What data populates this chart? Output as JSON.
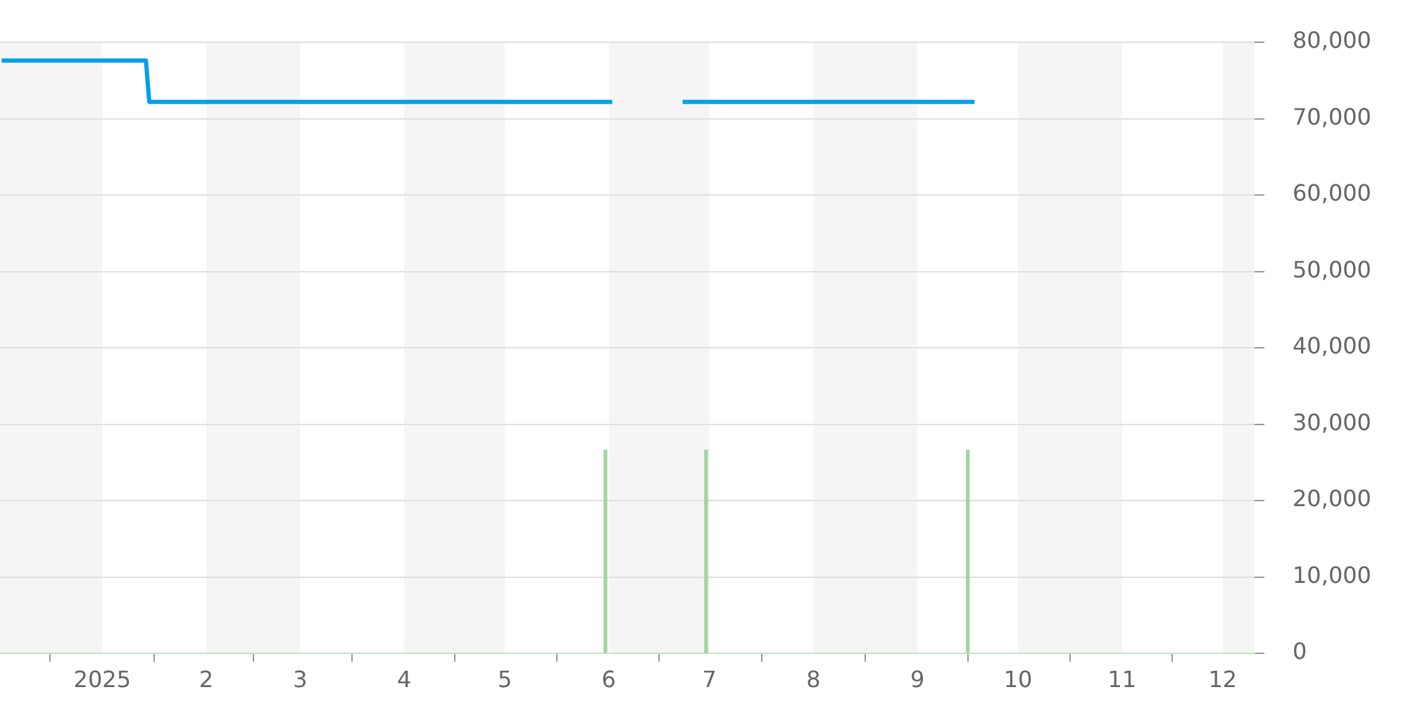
{
  "chart_data": {
    "type": "line",
    "xlim": [
      "2024-12-01T12:00",
      "2025-12-10T12:00"
    ],
    "xticks": [
      {
        "value": "2025-01-01",
        "label": "2025"
      },
      {
        "value": "2025-02-01",
        "label": "2"
      },
      {
        "value": "2025-03-01",
        "label": "3"
      },
      {
        "value": "2025-04-01",
        "label": "4"
      },
      {
        "value": "2025-05-01",
        "label": "5"
      },
      {
        "value": "2025-06-01",
        "label": "6"
      },
      {
        "value": "2025-07-01",
        "label": "7"
      },
      {
        "value": "2025-08-01",
        "label": "8"
      },
      {
        "value": "2025-09-01",
        "label": "9"
      },
      {
        "value": "2025-10-01",
        "label": "10"
      },
      {
        "value": "2025-11-01",
        "label": "11"
      },
      {
        "value": "2025-12-01",
        "label": "12"
      }
    ],
    "ylim": [
      0,
      80000
    ],
    "yticks": [
      0,
      {
        "value": 10000,
        "label": "10,000"
      },
      {
        "value": 20000,
        "label": "20,000"
      },
      {
        "value": 30000,
        "label": "30,000"
      },
      {
        "value": 40000,
        "label": "40,000"
      },
      {
        "value": 50000,
        "label": "50,000"
      },
      {
        "value": 60000,
        "label": "60,000"
      },
      {
        "value": 70000,
        "label": "70,000"
      },
      {
        "value": 80000,
        "label": "80,000"
      }
    ],
    "grid": "y",
    "legend": false,
    "marker": "none",
    "line_style": "solid",
    "bands": [
      {
        "axis": "x",
        "from": "2024-12-01T12:00",
        "to": "2025-01-01",
        "color": "#f5f5f5"
      },
      {
        "axis": "x",
        "from": "2025-02-01",
        "to": "2025-03-01",
        "color": "#f5f5f5"
      },
      {
        "axis": "x",
        "from": "2025-04-01",
        "to": "2025-05-01",
        "color": "#f5f5f5"
      },
      {
        "axis": "x",
        "from": "2025-06-01",
        "to": "2025-07-01",
        "color": "#f5f5f5"
      },
      {
        "axis": "x",
        "from": "2025-08-01",
        "to": "2025-09-01",
        "color": "#f5f5f5"
      },
      {
        "axis": "x",
        "from": "2025-10-01",
        "to": "2025-11-01",
        "color": "#f5f5f5"
      },
      {
        "axis": "x",
        "from": "2025-12-01",
        "to": "2025-12-10T12:00",
        "color": "#f5f5f5"
      }
    ],
    "series": [
      {
        "color": "#00a0e9",
        "x": [
          "2024-12-02",
          "2025-01-14",
          "2025-01-15",
          "2025-06-02",
          "2025-06-12",
          "2025-06-23",
          "2025-09-18"
        ],
        "values": [
          77600,
          77600,
          72200,
          72200,
          null,
          72200,
          72200
        ]
      },
      {
        "type": "bar",
        "color": "#a0d6a0",
        "x": [
          "2025-05-31",
          "2025-06-30",
          "2025-09-16"
        ],
        "values": [
          26600,
          26600,
          26600
        ]
      }
    ]
  }
}
